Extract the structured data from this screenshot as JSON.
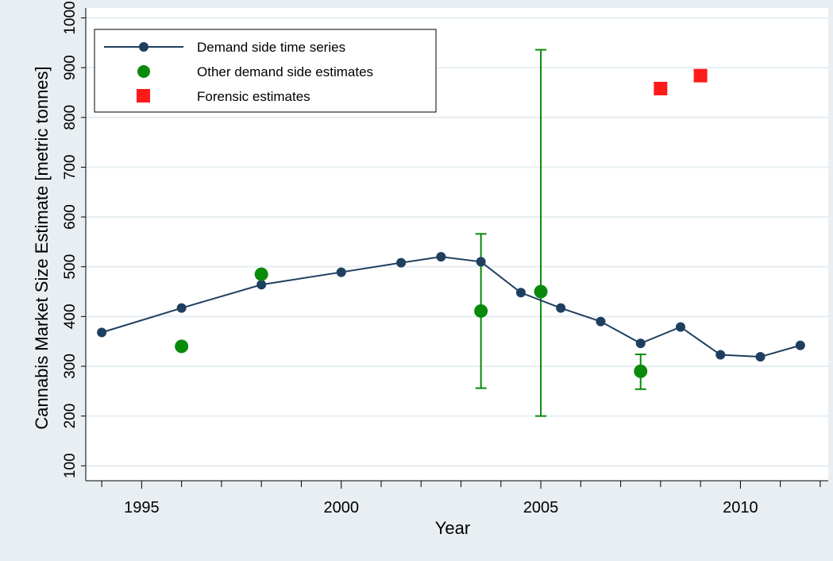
{
  "chart_data": {
    "type": "line",
    "xlabel": "Year",
    "ylabel": "Cannabis Market Size Estimate [metric tonnes]",
    "xlim": [
      1993.6,
      2012.2
    ],
    "ylim": [
      70,
      1020
    ],
    "x_major_ticks": [
      1995,
      2000,
      2005,
      2010
    ],
    "x_minor_ticks": [
      1994,
      1996,
      1997,
      1998,
      1999,
      2001,
      2002,
      2003,
      2004,
      2006,
      2007,
      2008,
      2009,
      2011,
      2012
    ],
    "y_ticks": [
      100,
      200,
      300,
      400,
      500,
      600,
      700,
      800,
      900,
      1000
    ],
    "grid": true,
    "legend_position": "top-left",
    "series": [
      {
        "name": "Demand side time series",
        "type": "line",
        "color": "#1f3f5f",
        "marker": "circle",
        "x": [
          1994,
          1996,
          1998,
          2000,
          2001.5,
          2002.5,
          2003.5,
          2004.5,
          2005.5,
          2006.5,
          2007.5,
          2008.5,
          2009.5,
          2010.5,
          2011.5
        ],
        "y": [
          368,
          417,
          464,
          489,
          508,
          520,
          510,
          448,
          417,
          390,
          346,
          379,
          323,
          319,
          342
        ]
      },
      {
        "name": "Other demand side estimates",
        "type": "scatter",
        "color": "#0a8a0a",
        "marker": "circle",
        "x": [
          1996,
          1998,
          2003.5,
          2005,
          2007.5
        ],
        "y": [
          340,
          485,
          411,
          450,
          290
        ],
        "error_bars": [
          null,
          null,
          [
            256,
            566
          ],
          [
            200,
            936
          ],
          [
            254,
            324
          ]
        ]
      },
      {
        "name": "Forensic estimates",
        "type": "scatter",
        "color": "#ff1a1a",
        "marker": "square",
        "x": [
          2008,
          2009
        ],
        "y": [
          858,
          884
        ]
      }
    ]
  }
}
